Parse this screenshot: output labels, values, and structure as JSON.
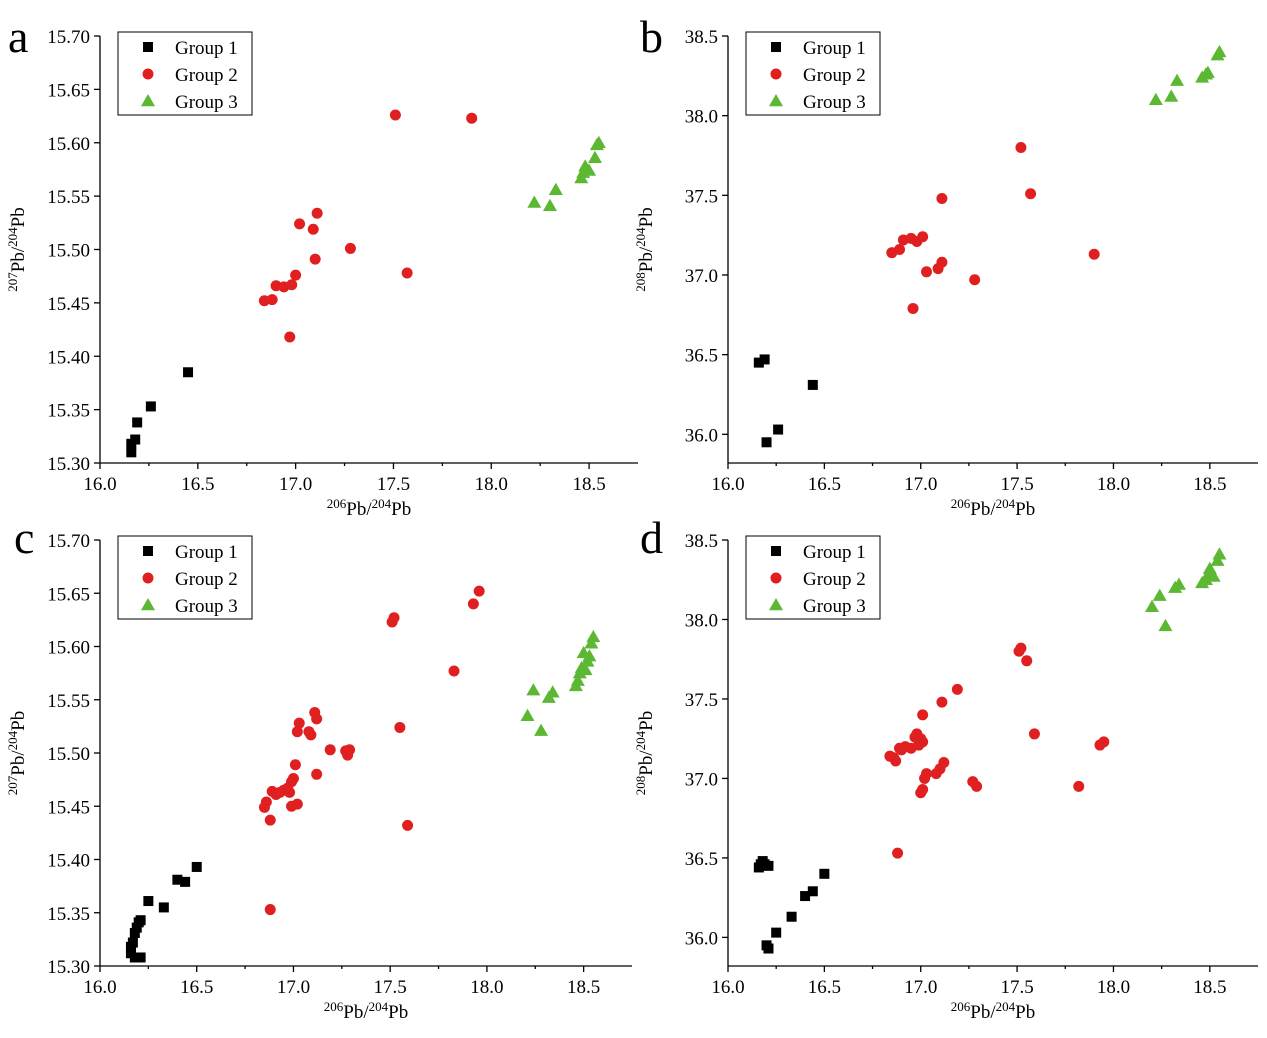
{
  "chart_data": [
    {
      "panel": "a",
      "type": "scatter",
      "xlabel": {
        "base": "Pb",
        "sup1": "206",
        "sup2": "204",
        "sep": "/"
      },
      "ylabel": {
        "base": "Pb",
        "sup1": "207",
        "sup2": "204",
        "sep": "/"
      },
      "xlim": [
        16.0,
        18.75
      ],
      "ylim": [
        15.3,
        15.7
      ],
      "xticks": [
        "16.0",
        "16.5",
        "17.0",
        "17.5",
        "18.0",
        "18.5"
      ],
      "yticks": [
        "15.30",
        "15.35",
        "15.40",
        "15.45",
        "15.50",
        "15.55",
        "15.60",
        "15.65",
        "15.70"
      ],
      "legend_position": "top-left",
      "series": [
        {
          "name": "Group 1",
          "marker": "square",
          "color": "#000000",
          "points": [
            [
              16.16,
              15.31
            ],
            [
              16.16,
              15.318
            ],
            [
              16.18,
              15.322
            ],
            [
              16.19,
              15.338
            ],
            [
              16.26,
              15.353
            ],
            [
              16.45,
              15.385
            ]
          ]
        },
        {
          "name": "Group 2",
          "marker": "circle",
          "color": "#e02020",
          "points": [
            [
              16.84,
              15.452
            ],
            [
              16.88,
              15.453
            ],
            [
              16.9,
              15.466
            ],
            [
              16.94,
              15.465
            ],
            [
              16.97,
              15.418
            ],
            [
              16.98,
              15.467
            ],
            [
              17.0,
              15.476
            ],
            [
              17.02,
              15.524
            ],
            [
              17.09,
              15.519
            ],
            [
              17.1,
              15.491
            ],
            [
              17.11,
              15.534
            ],
            [
              17.28,
              15.501
            ],
            [
              17.51,
              15.626
            ],
            [
              17.57,
              15.478
            ],
            [
              17.9,
              15.623
            ]
          ]
        },
        {
          "name": "Group 3",
          "marker": "triangle",
          "color": "#5cb832",
          "points": [
            [
              18.22,
              15.544
            ],
            [
              18.3,
              15.541
            ],
            [
              18.33,
              15.556
            ],
            [
              18.46,
              15.567
            ],
            [
              18.47,
              15.572
            ],
            [
              18.48,
              15.578
            ],
            [
              18.5,
              15.574
            ],
            [
              18.53,
              15.586
            ],
            [
              18.54,
              15.598
            ],
            [
              18.55,
              15.6
            ]
          ]
        }
      ]
    },
    {
      "panel": "b",
      "type": "scatter",
      "xlabel": {
        "base": "Pb",
        "sup1": "206",
        "sup2": "204",
        "sep": "/"
      },
      "ylabel": {
        "base": "Pb",
        "sup1": "208",
        "sup2": "204",
        "sep": "/"
      },
      "xlim": [
        16.0,
        18.75
      ],
      "ylim": [
        35.8,
        38.5
      ],
      "yticks_values": [
        36.0,
        36.5,
        37.0,
        37.5,
        38.0,
        38.5
      ],
      "xticks": [
        "16.0",
        "16.5",
        "17.0",
        "17.5",
        "18.0",
        "18.5"
      ],
      "yticks": [
        "36.0",
        "36.5",
        "37.0",
        "37.5",
        "38.0",
        "38.5"
      ],
      "legend_position": "top-left",
      "series": [
        {
          "name": "Group 1",
          "marker": "square",
          "color": "#000000",
          "points": [
            [
              16.16,
              36.45
            ],
            [
              16.19,
              36.47
            ],
            [
              16.2,
              35.95
            ],
            [
              16.26,
              36.03
            ],
            [
              16.44,
              36.31
            ]
          ]
        },
        {
          "name": "Group 2",
          "marker": "circle",
          "color": "#e02020",
          "points": [
            [
              16.85,
              37.14
            ],
            [
              16.89,
              37.16
            ],
            [
              16.91,
              37.22
            ],
            [
              16.95,
              37.23
            ],
            [
              16.98,
              37.21
            ],
            [
              17.01,
              37.24
            ],
            [
              16.96,
              36.79
            ],
            [
              17.03,
              37.02
            ],
            [
              17.09,
              37.04
            ],
            [
              17.11,
              37.08
            ],
            [
              17.11,
              37.48
            ],
            [
              17.28,
              36.97
            ],
            [
              17.52,
              37.8
            ],
            [
              17.57,
              37.51
            ],
            [
              17.9,
              37.13
            ]
          ]
        },
        {
          "name": "Group 3",
          "marker": "triangle",
          "color": "#5cb832",
          "points": [
            [
              18.22,
              38.1
            ],
            [
              18.3,
              38.12
            ],
            [
              18.33,
              38.22
            ],
            [
              18.46,
              38.24
            ],
            [
              18.48,
              38.26
            ],
            [
              18.49,
              38.27
            ],
            [
              18.54,
              38.38
            ],
            [
              18.55,
              38.4
            ]
          ]
        }
      ]
    },
    {
      "panel": "c",
      "type": "scatter",
      "xlabel": {
        "base": "Pb",
        "sup1": "206",
        "sup2": "204",
        "sep": "/"
      },
      "ylabel": {
        "base": "Pb",
        "sup1": "207",
        "sup2": "204",
        "sep": "/"
      },
      "xlim": [
        16.0,
        18.75
      ],
      "ylim": [
        15.3,
        15.7
      ],
      "xticks": [
        "16.0",
        "16.5",
        "17.0",
        "17.5",
        "18.0",
        "18.5"
      ],
      "yticks": [
        "15.30",
        "15.35",
        "15.40",
        "15.45",
        "15.50",
        "15.55",
        "15.60",
        "15.65",
        "15.70"
      ],
      "legend_position": "top-left",
      "series": [
        {
          "name": "Group 1",
          "marker": "square",
          "color": "#000000",
          "points": [
            [
              16.16,
              15.312
            ],
            [
              16.16,
              15.318
            ],
            [
              16.17,
              15.322
            ],
            [
              16.18,
              15.331
            ],
            [
              16.18,
              15.308
            ],
            [
              16.19,
              15.336
            ],
            [
              16.2,
              15.341
            ],
            [
              16.21,
              15.343
            ],
            [
              16.21,
              15.308
            ],
            [
              16.25,
              15.361
            ],
            [
              16.33,
              15.355
            ],
            [
              16.4,
              15.381
            ],
            [
              16.44,
              15.379
            ],
            [
              16.5,
              15.393
            ]
          ]
        },
        {
          "name": "Group 2",
          "marker": "circle",
          "color": "#e02020",
          "points": [
            [
              16.85,
              15.449
            ],
            [
              16.86,
              15.454
            ],
            [
              16.88,
              15.437
            ],
            [
              16.88,
              15.353
            ],
            [
              16.89,
              15.464
            ],
            [
              16.91,
              15.461
            ],
            [
              16.93,
              15.463
            ],
            [
              16.95,
              15.465
            ],
            [
              16.97,
              15.467
            ],
            [
              16.98,
              15.463
            ],
            [
              16.99,
              15.473
            ],
            [
              17.0,
              15.476
            ],
            [
              16.99,
              15.45
            ],
            [
              17.02,
              15.452
            ],
            [
              17.01,
              15.489
            ],
            [
              17.02,
              15.52
            ],
            [
              17.03,
              15.528
            ],
            [
              17.08,
              15.52
            ],
            [
              17.09,
              15.517
            ],
            [
              17.11,
              15.538
            ],
            [
              17.12,
              15.532
            ],
            [
              17.12,
              15.48
            ],
            [
              17.19,
              15.503
            ],
            [
              17.27,
              15.502
            ],
            [
              17.28,
              15.498
            ],
            [
              17.29,
              15.503
            ],
            [
              17.51,
              15.623
            ],
            [
              17.52,
              15.627
            ],
            [
              17.55,
              15.524
            ],
            [
              17.59,
              15.432
            ],
            [
              17.83,
              15.577
            ],
            [
              17.93,
              15.64
            ],
            [
              17.96,
              15.652
            ]
          ]
        },
        {
          "name": "Group 3",
          "marker": "triangle",
          "color": "#5cb832",
          "points": [
            [
              18.21,
              15.535
            ],
            [
              18.24,
              15.559
            ],
            [
              18.28,
              15.521
            ],
            [
              18.32,
              15.552
            ],
            [
              18.34,
              15.557
            ],
            [
              18.46,
              15.563
            ],
            [
              18.47,
              15.568
            ],
            [
              18.48,
              15.575
            ],
            [
              18.49,
              15.58
            ],
            [
              18.5,
              15.594
            ],
            [
              18.51,
              15.578
            ],
            [
              18.52,
              15.586
            ],
            [
              18.53,
              15.591
            ],
            [
              18.54,
              15.603
            ],
            [
              18.55,
              15.609
            ]
          ]
        }
      ]
    },
    {
      "panel": "d",
      "type": "scatter",
      "xlabel": {
        "base": "Pb",
        "sup1": "206",
        "sup2": "204",
        "sep": "/"
      },
      "ylabel": {
        "base": "Pb",
        "sup1": "208",
        "sup2": "204",
        "sep": "/"
      },
      "xlim": [
        16.0,
        18.75
      ],
      "ylim": [
        35.8,
        38.5
      ],
      "yticks_values": [
        36.0,
        36.5,
        37.0,
        37.5,
        38.0,
        38.5
      ],
      "xticks": [
        "16.0",
        "16.5",
        "17.0",
        "17.5",
        "18.0",
        "18.5"
      ],
      "yticks": [
        "36.0",
        "36.5",
        "37.0",
        "37.5",
        "38.0",
        "38.5"
      ],
      "legend_position": "top-left",
      "series": [
        {
          "name": "Group 1",
          "marker": "square",
          "color": "#000000",
          "points": [
            [
              16.16,
              36.44
            ],
            [
              16.17,
              36.46
            ],
            [
              16.18,
              36.48
            ],
            [
              16.19,
              36.46
            ],
            [
              16.21,
              36.45
            ],
            [
              16.2,
              35.95
            ],
            [
              16.21,
              35.93
            ],
            [
              16.25,
              36.03
            ],
            [
              16.33,
              36.13
            ],
            [
              16.4,
              36.26
            ],
            [
              16.44,
              36.29
            ],
            [
              16.5,
              36.4
            ]
          ]
        },
        {
          "name": "Group 2",
          "marker": "circle",
          "color": "#e02020",
          "points": [
            [
              16.84,
              37.14
            ],
            [
              16.86,
              37.13
            ],
            [
              16.87,
              37.11
            ],
            [
              16.89,
              37.19
            ],
            [
              16.9,
              37.18
            ],
            [
              16.92,
              37.2
            ],
            [
              16.95,
              37.19
            ],
            [
              16.97,
              37.26
            ],
            [
              16.98,
              37.28
            ],
            [
              16.99,
              37.21
            ],
            [
              17.0,
              37.25
            ],
            [
              17.01,
              37.23
            ],
            [
              17.01,
              37.4
            ],
            [
              17.0,
              36.91
            ],
            [
              17.01,
              36.93
            ],
            [
              17.02,
              37.0
            ],
            [
              17.03,
              37.03
            ],
            [
              17.08,
              37.03
            ],
            [
              17.1,
              37.06
            ],
            [
              17.12,
              37.1
            ],
            [
              17.11,
              37.48
            ],
            [
              17.19,
              37.56
            ],
            [
              17.27,
              36.98
            ],
            [
              17.29,
              36.95
            ],
            [
              16.88,
              36.53
            ],
            [
              17.51,
              37.8
            ],
            [
              17.52,
              37.82
            ],
            [
              17.55,
              37.74
            ],
            [
              17.59,
              37.28
            ],
            [
              17.82,
              36.95
            ],
            [
              17.93,
              37.21
            ],
            [
              17.95,
              37.23
            ]
          ]
        },
        {
          "name": "Group 3",
          "marker": "triangle",
          "color": "#5cb832",
          "points": [
            [
              18.2,
              38.08
            ],
            [
              18.24,
              38.15
            ],
            [
              18.27,
              37.96
            ],
            [
              18.32,
              38.2
            ],
            [
              18.34,
              38.22
            ],
            [
              18.46,
              38.23
            ],
            [
              18.48,
              38.25
            ],
            [
              18.49,
              38.28
            ],
            [
              18.5,
              38.32
            ],
            [
              18.52,
              38.27
            ],
            [
              18.54,
              38.37
            ],
            [
              18.55,
              38.41
            ]
          ]
        }
      ]
    }
  ]
}
